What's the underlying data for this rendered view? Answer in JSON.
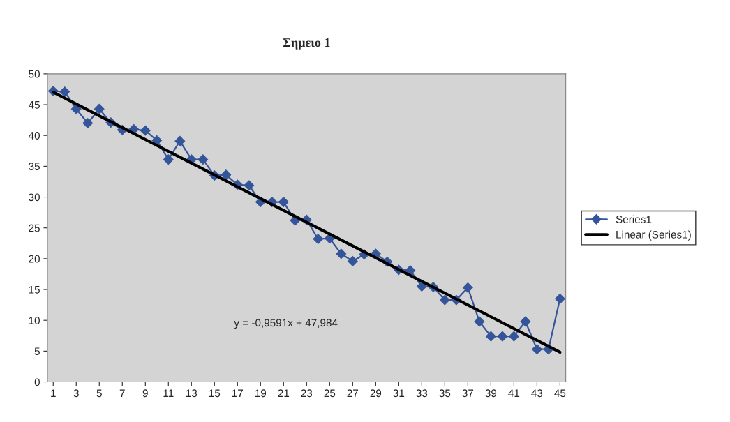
{
  "chart_data": {
    "type": "line",
    "title": "Σημειο 1",
    "x": [
      1,
      2,
      3,
      4,
      5,
      6,
      7,
      8,
      9,
      10,
      11,
      12,
      13,
      14,
      15,
      16,
      17,
      18,
      19,
      20,
      21,
      22,
      23,
      24,
      25,
      26,
      27,
      28,
      29,
      30,
      31,
      32,
      33,
      34,
      35,
      36,
      37,
      38,
      39,
      40,
      41,
      42,
      43,
      44,
      45
    ],
    "series": [
      {
        "name": "Series1",
        "color": "#34559a",
        "marker": "diamond",
        "values": [
          47.2,
          47.1,
          44.3,
          42,
          44.3,
          42.1,
          40.9,
          41,
          40.8,
          39.2,
          36.1,
          39.1,
          36.1,
          36.1,
          33.5,
          33.6,
          32,
          31.9,
          29.2,
          29.2,
          29.2,
          26.2,
          26.3,
          23.2,
          23.3,
          20.8,
          19.6,
          20.7,
          20.8,
          19.5,
          18.2,
          18.1,
          15.5,
          15.4,
          13.3,
          13.3,
          15.3,
          9.8,
          7.4,
          7.4,
          7.4,
          9.8,
          5.3,
          5.3,
          13.5
        ]
      },
      {
        "name": "Linear (Series1)",
        "color": "#000000",
        "marker": "none",
        "x": [
          1,
          45
        ],
        "values": [
          47.02,
          4.82
        ]
      }
    ],
    "xlim": [
      0.5,
      45.5
    ],
    "xticks": [
      1,
      3,
      5,
      7,
      9,
      11,
      13,
      15,
      17,
      19,
      21,
      23,
      25,
      27,
      29,
      31,
      33,
      35,
      37,
      39,
      41,
      43,
      45
    ],
    "ylim": [
      0,
      50
    ],
    "yticks": [
      0,
      5,
      10,
      15,
      20,
      25,
      30,
      35,
      40,
      45,
      50
    ],
    "grid": false,
    "legend": "right",
    "annotations": [
      "y = -0,9591x + 47,984"
    ]
  }
}
